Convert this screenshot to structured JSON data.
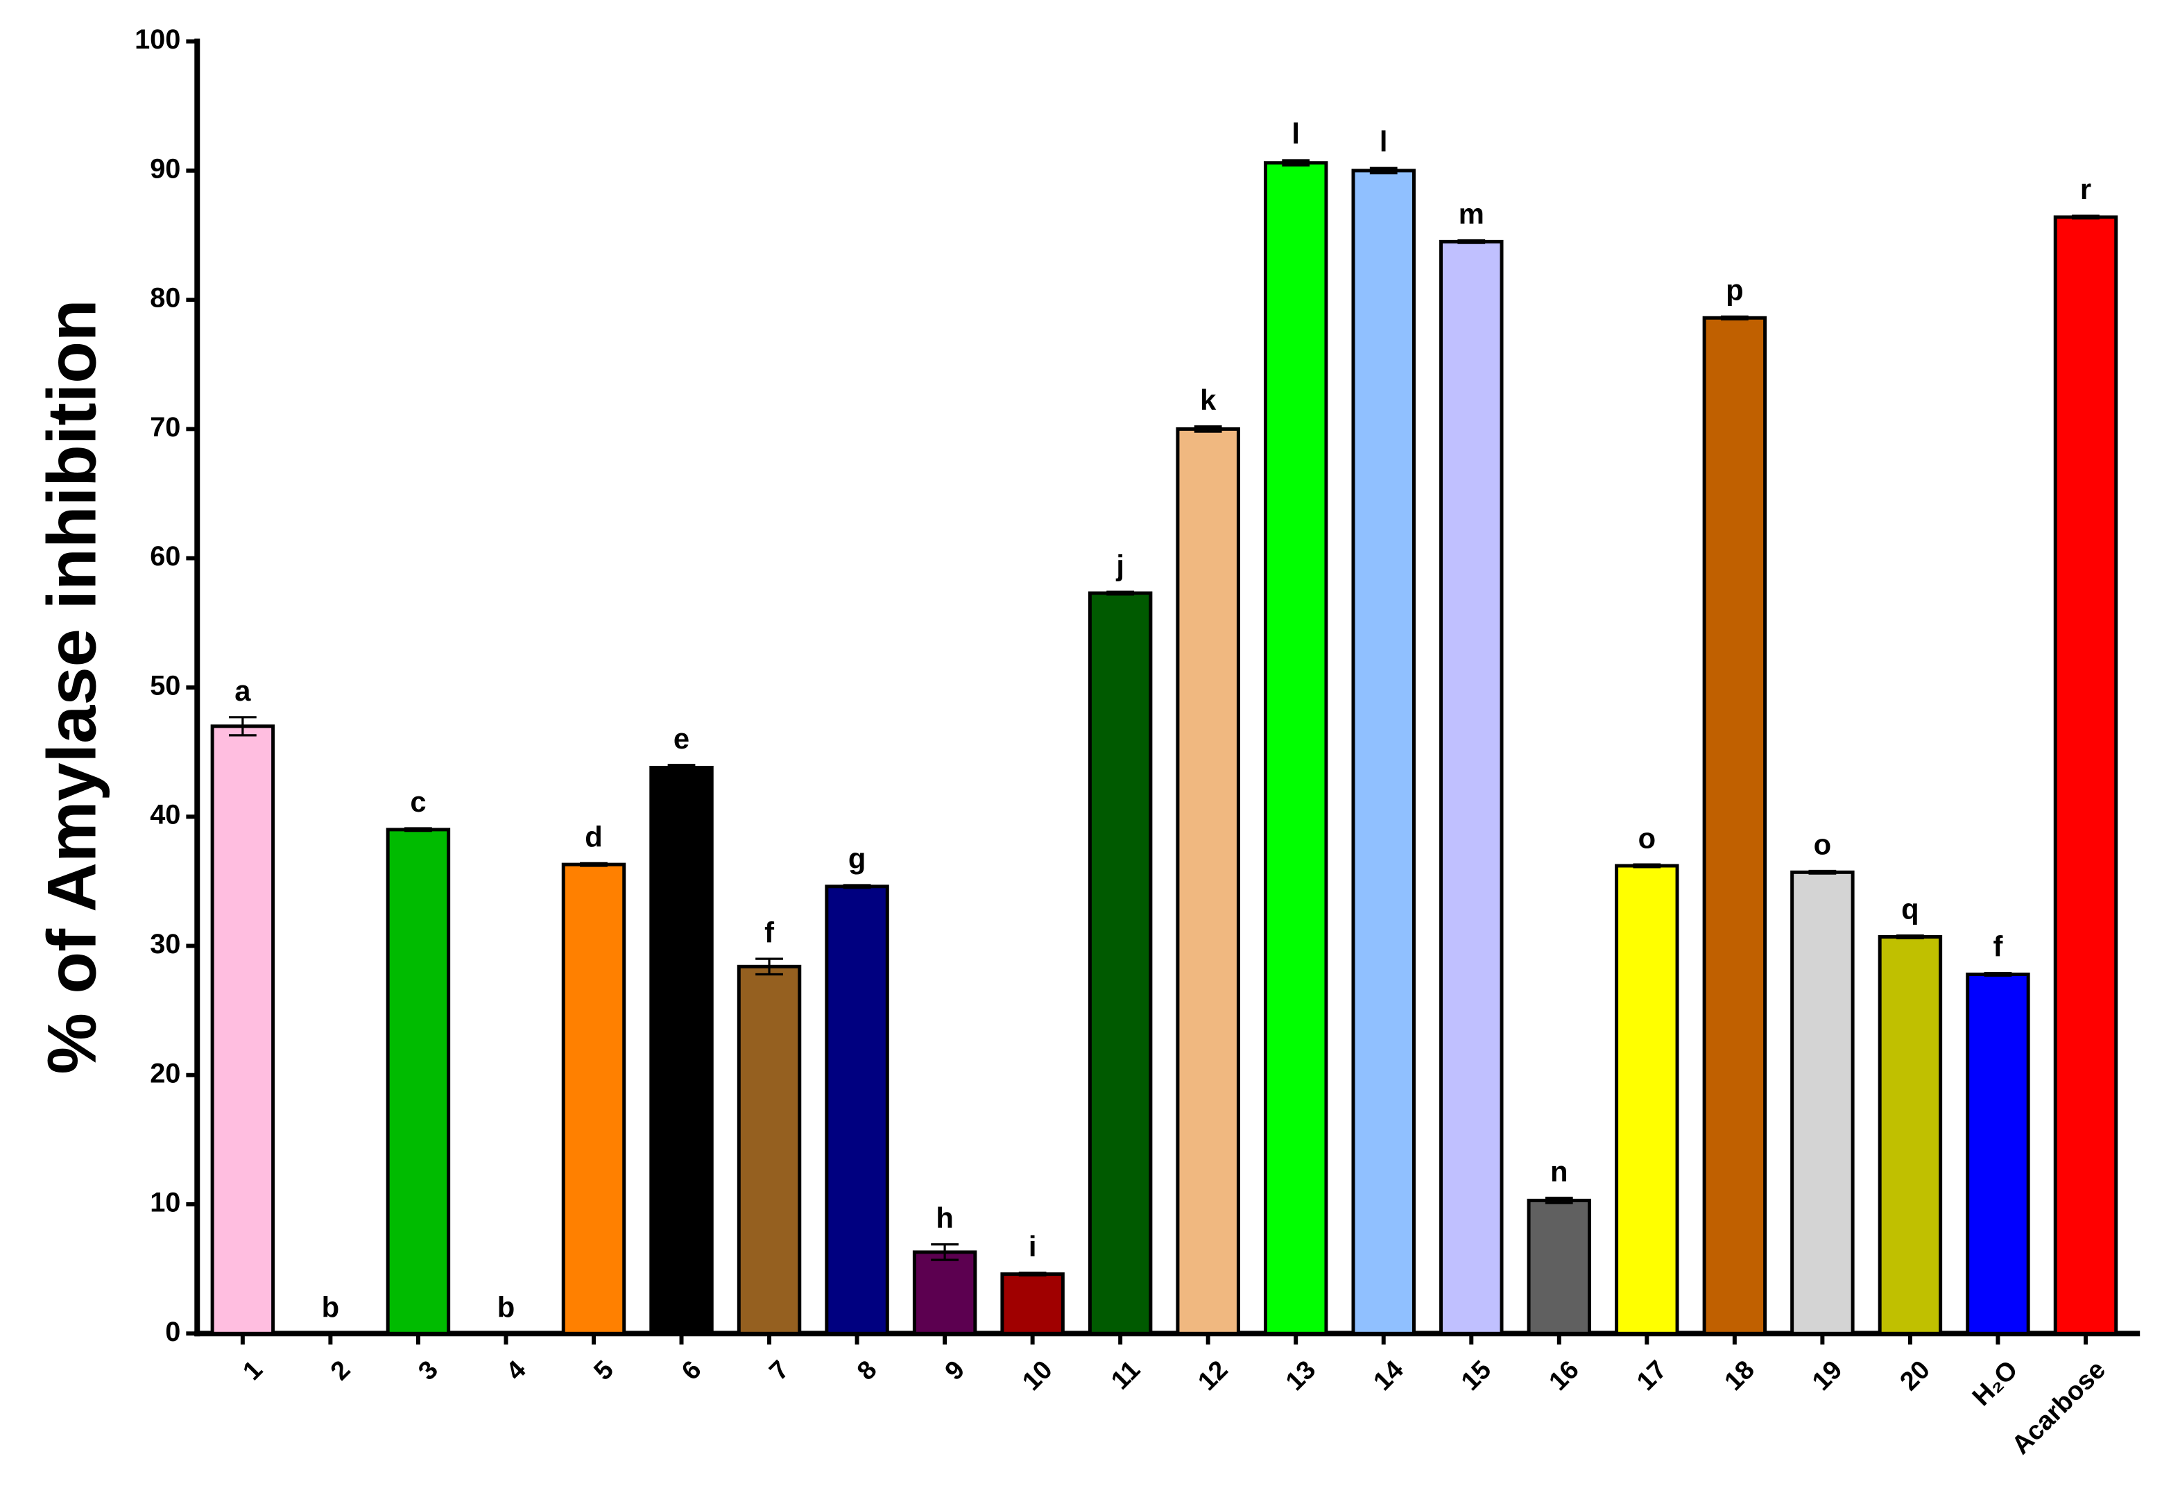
{
  "chart_data": {
    "type": "bar",
    "y_label": "% of Amylase inhibition",
    "categories": [
      "1",
      "2",
      "3",
      "4",
      "5",
      "6",
      "7",
      "8",
      "9",
      "10",
      "11",
      "12",
      "13",
      "14",
      "15",
      "16",
      "17",
      "18",
      "19",
      "20",
      "H₂O",
      "Acarbose"
    ],
    "values": [
      47,
      0,
      39,
      0,
      36.3,
      43.8,
      28.4,
      34.6,
      6.3,
      4.6,
      57.3,
      70,
      90.6,
      90,
      84.5,
      10.3,
      36.2,
      78.6,
      35.7,
      30.7,
      27.8,
      86.4
    ],
    "errors": [
      0.7,
      0,
      0.1,
      0,
      0.1,
      0.2,
      0.6,
      0.1,
      0.6,
      0.1,
      0.1,
      0.2,
      0.2,
      0.2,
      0.1,
      0.2,
      0.1,
      0.1,
      0.1,
      0.1,
      0.1,
      0.1
    ],
    "annotations": [
      "a",
      "b",
      "c",
      "b",
      "d",
      "e",
      "f",
      "g",
      "h",
      "i",
      "j",
      "k",
      "l",
      "l",
      "m",
      "n",
      "o",
      "p",
      "o",
      "q",
      "f",
      "r"
    ],
    "colors": [
      "#FFBEE0",
      "#FFFFFF",
      "#00BB00",
      "#FFFFFF",
      "#FF8000",
      "#000000",
      "#956020",
      "#000080",
      "#5C0050",
      "#A00000",
      "#005A00",
      "#F0B880",
      "#00FF00",
      "#90C0FF",
      "#C0C0FF",
      "#606060",
      "#FFFF00",
      "#C06000",
      "#D4D4D4",
      "#C0C000",
      "#0000FF",
      "#FF0000"
    ],
    "ylim": [
      0,
      100
    ],
    "yticks": [
      0,
      10,
      20,
      30,
      40,
      50,
      60,
      70,
      80,
      90,
      100
    ]
  }
}
